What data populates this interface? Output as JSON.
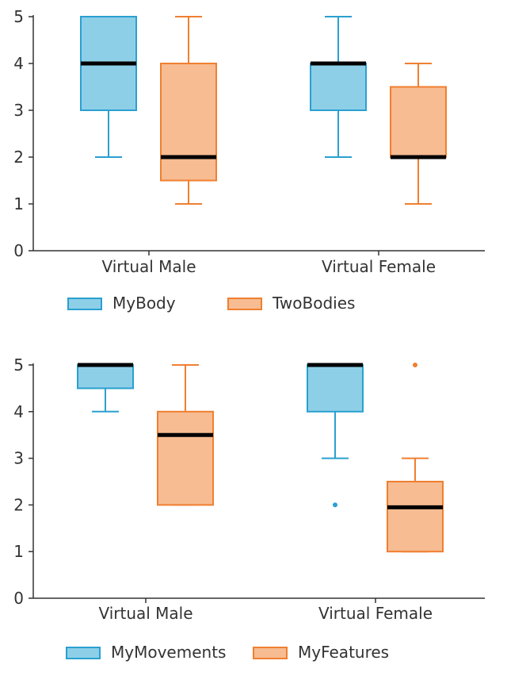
{
  "colors": {
    "blue_fill": "#8ecfe8",
    "blue_stroke": "#2aa0d0",
    "orange_fill": "#f7bc92",
    "orange_stroke": "#f07f30",
    "median": "#000000",
    "axis": "#333333"
  },
  "chart_data": [
    {
      "type": "box",
      "categories": [
        "Virtual Male",
        "Virtual Female"
      ],
      "y_ticks": [
        "0",
        "1",
        "2",
        "3",
        "4",
        "5"
      ],
      "ylim": [
        0,
        5
      ],
      "legend_position": "bottom-left",
      "series": [
        {
          "name": "MyBody",
          "color": "blue",
          "boxes": [
            {
              "min": 2,
              "q1": 3,
              "median": 4,
              "q3": 5,
              "max": 5,
              "outliers": []
            },
            {
              "min": 2,
              "q1": 3,
              "median": 4,
              "q3": 4,
              "max": 5,
              "outliers": []
            }
          ]
        },
        {
          "name": "TwoBodies",
          "color": "orange",
          "boxes": [
            {
              "min": 1,
              "q1": 1.5,
              "median": 2,
              "q3": 4,
              "max": 5,
              "outliers": []
            },
            {
              "min": 1,
              "q1": 2,
              "median": 2,
              "q3": 3.5,
              "max": 4,
              "outliers": []
            }
          ]
        }
      ]
    },
    {
      "type": "box",
      "categories": [
        "Virtual Male",
        "Virtual Female"
      ],
      "y_ticks": [
        "0",
        "1",
        "2",
        "3",
        "4",
        "5"
      ],
      "ylim": [
        0,
        5
      ],
      "legend_position": "bottom-left",
      "series": [
        {
          "name": "MyMovements",
          "color": "blue",
          "boxes": [
            {
              "min": 4,
              "q1": 4.5,
              "median": 5,
              "q3": 5,
              "max": 5,
              "outliers": []
            },
            {
              "min": 3,
              "q1": 4,
              "median": 5,
              "q3": 5,
              "max": 5,
              "outliers": [
                2
              ]
            }
          ]
        },
        {
          "name": "MyFeatures",
          "color": "orange",
          "boxes": [
            {
              "min": 2,
              "q1": 2,
              "median": 3.5,
              "q3": 4,
              "max": 5,
              "outliers": []
            },
            {
              "min": 1,
              "q1": 1,
              "median": 1.95,
              "q3": 2.5,
              "max": 3,
              "outliers": [
                5
              ]
            }
          ]
        }
      ]
    }
  ]
}
